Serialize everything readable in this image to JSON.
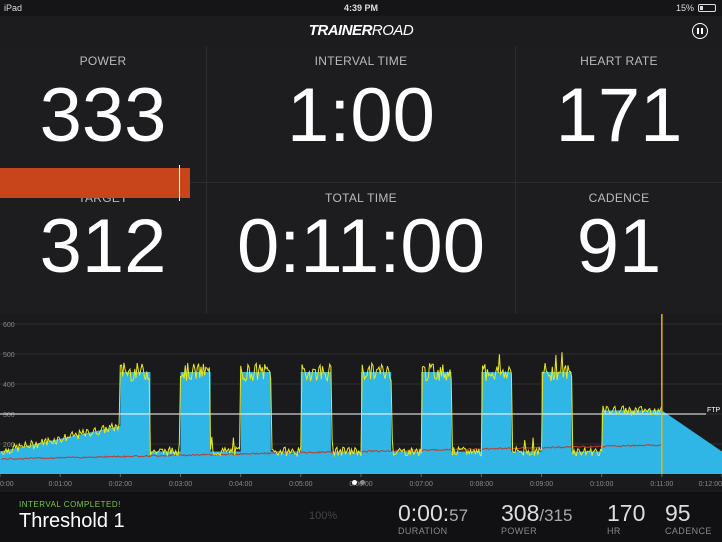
{
  "status": {
    "device": "iPad",
    "time": "4:39 PM",
    "battery": "15%"
  },
  "header": {
    "logo_bold": "TRAINER",
    "logo_light": "ROAD"
  },
  "metrics": {
    "power": {
      "label": "POWER",
      "value": "333"
    },
    "interval_time": {
      "label": "INTERVAL TIME",
      "value": "1:00"
    },
    "heart_rate": {
      "label": "HEART RATE",
      "value": "171"
    },
    "target": {
      "label": "TARGET",
      "value": "312"
    },
    "total_time": {
      "label": "TOTAL TIME",
      "value": "0:11:00"
    },
    "cadence": {
      "label": "CADENCE",
      "value": "91"
    }
  },
  "chart_data": {
    "type": "area",
    "y_ticks": [
      "600",
      "500",
      "400",
      "300",
      "200"
    ],
    "x_ticks": [
      "0:00",
      "0:01:00",
      "0:02:00",
      "0:03:00",
      "0:04:00",
      "0:05:00",
      "0:06:00",
      "0:07:00",
      "0:08:00",
      "0:09:00",
      "0:10:00",
      "0:11:00",
      "0:12:00"
    ],
    "ftp_label": "FTP",
    "ftp": 300,
    "current_time_min": 11,
    "ylim": [
      100,
      620
    ],
    "xlim_min": [
      0,
      12
    ],
    "target": [
      [
        0,
        175
      ],
      [
        2,
        260
      ],
      [
        2,
        440
      ],
      [
        2.5,
        440
      ],
      [
        2.5,
        175
      ],
      [
        3,
        175
      ],
      [
        3,
        440
      ],
      [
        3.5,
        440
      ],
      [
        3.5,
        175
      ],
      [
        4,
        175
      ],
      [
        4,
        440
      ],
      [
        4.5,
        440
      ],
      [
        4.5,
        175
      ],
      [
        5,
        175
      ],
      [
        5,
        440
      ],
      [
        5.5,
        440
      ],
      [
        5.5,
        175
      ],
      [
        6,
        175
      ],
      [
        6,
        440
      ],
      [
        6.5,
        440
      ],
      [
        6.5,
        175
      ],
      [
        7,
        175
      ],
      [
        7,
        440
      ],
      [
        7.5,
        440
      ],
      [
        7.5,
        175
      ],
      [
        8,
        175
      ],
      [
        8,
        440
      ],
      [
        8.5,
        440
      ],
      [
        8.5,
        175
      ],
      [
        9,
        175
      ],
      [
        9,
        440
      ],
      [
        9.5,
        440
      ],
      [
        9.5,
        175
      ],
      [
        10,
        175
      ],
      [
        10,
        312
      ],
      [
        11,
        312
      ],
      [
        12,
        175
      ]
    ]
  },
  "bottom": {
    "status": "INTERVAL COMPLETED!",
    "workout": "Threshold 1",
    "percent": "100%",
    "duration_main": "0:00:",
    "duration_sec": "57",
    "duration_label": "DURATION",
    "power_main": "308",
    "power_target": "/315",
    "power_label": "POWER",
    "hr_value": "170",
    "hr_label": "HR",
    "cadence_value": "95",
    "cadence_label": "CADENCE"
  },
  "colors": {
    "target_fill": "#2fb6e6",
    "power_line": "#e8e81e",
    "hr_line": "#c0392b",
    "power_bar": "#c8451c",
    "completed": "#7ac943"
  }
}
